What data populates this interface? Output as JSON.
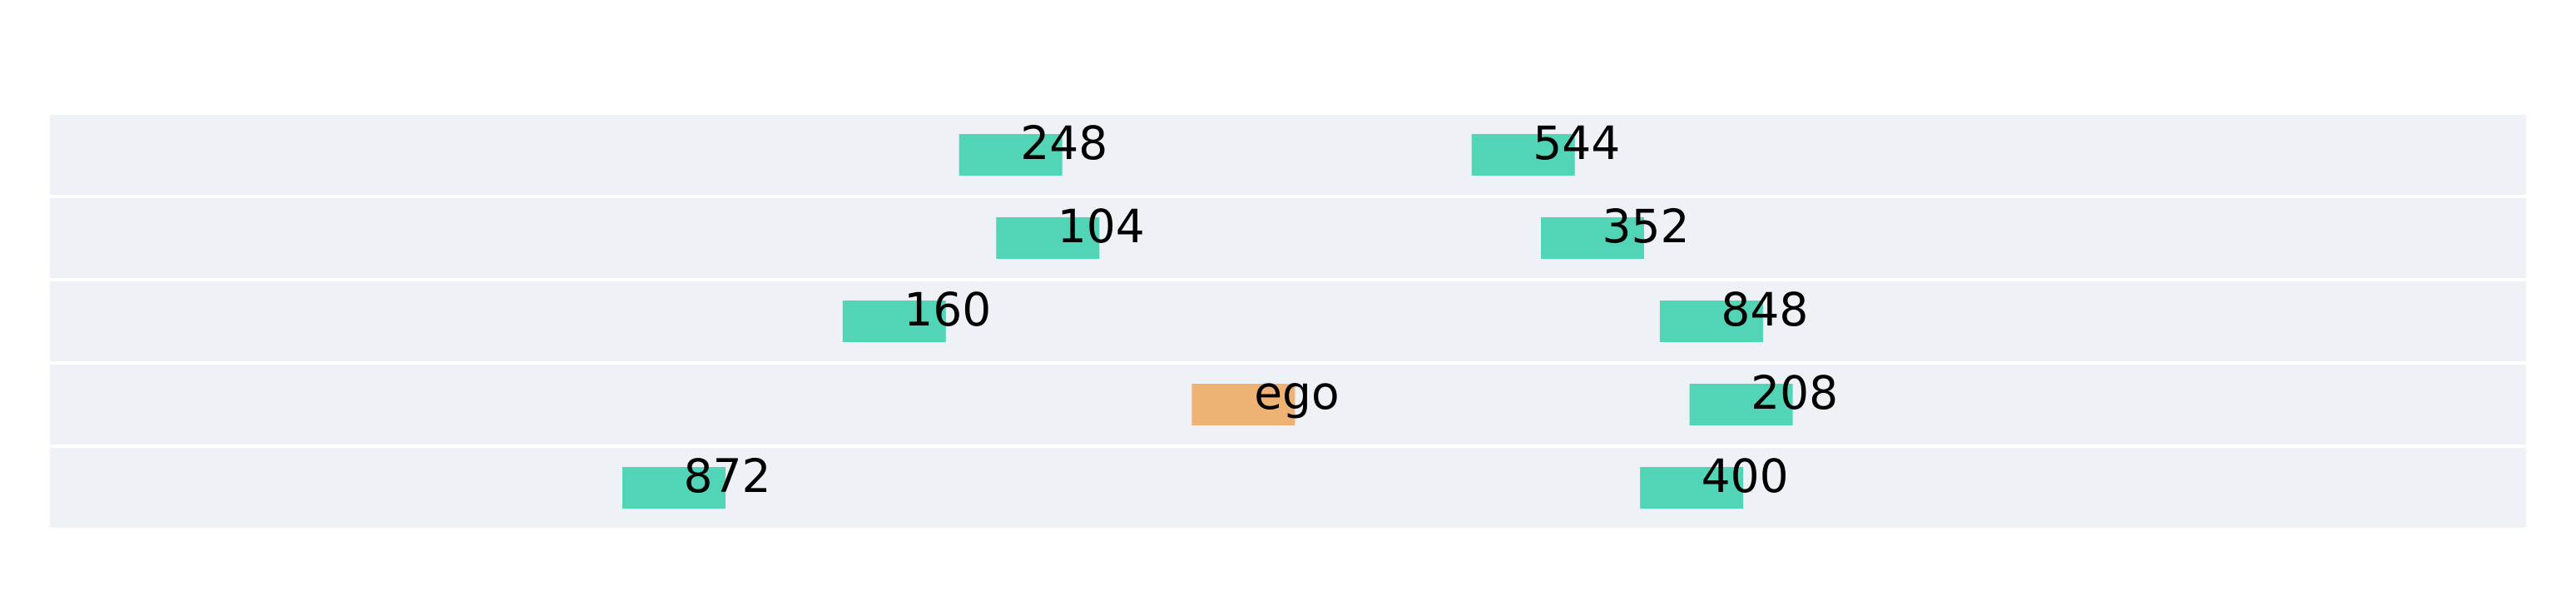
{
  "colors": {
    "background": "#ffffff",
    "lane": "#eef1f6",
    "lane_separator": "#ffffff",
    "ego_vehicle": "#eeb274",
    "other_vehicle": "#52d4b6",
    "label": "#000000"
  },
  "scene": {
    "lanes": [
      {
        "vehicles": [
          {
            "label": "248",
            "kind": "other",
            "position": 0.388
          },
          {
            "label": "544",
            "kind": "other",
            "position": 0.595
          }
        ]
      },
      {
        "vehicles": [
          {
            "label": "104",
            "kind": "other",
            "position": 0.403
          },
          {
            "label": "352",
            "kind": "other",
            "position": 0.623
          }
        ]
      },
      {
        "vehicles": [
          {
            "label": "160",
            "kind": "other",
            "position": 0.341
          },
          {
            "label": "848",
            "kind": "other",
            "position": 0.671
          }
        ]
      },
      {
        "vehicles": [
          {
            "label": "ego",
            "kind": "ego",
            "position": 0.482
          },
          {
            "label": "208",
            "kind": "other",
            "position": 0.683
          }
        ]
      },
      {
        "vehicles": [
          {
            "label": "872",
            "kind": "other",
            "position": 0.252
          },
          {
            "label": "400",
            "kind": "other",
            "position": 0.663
          }
        ]
      }
    ]
  }
}
